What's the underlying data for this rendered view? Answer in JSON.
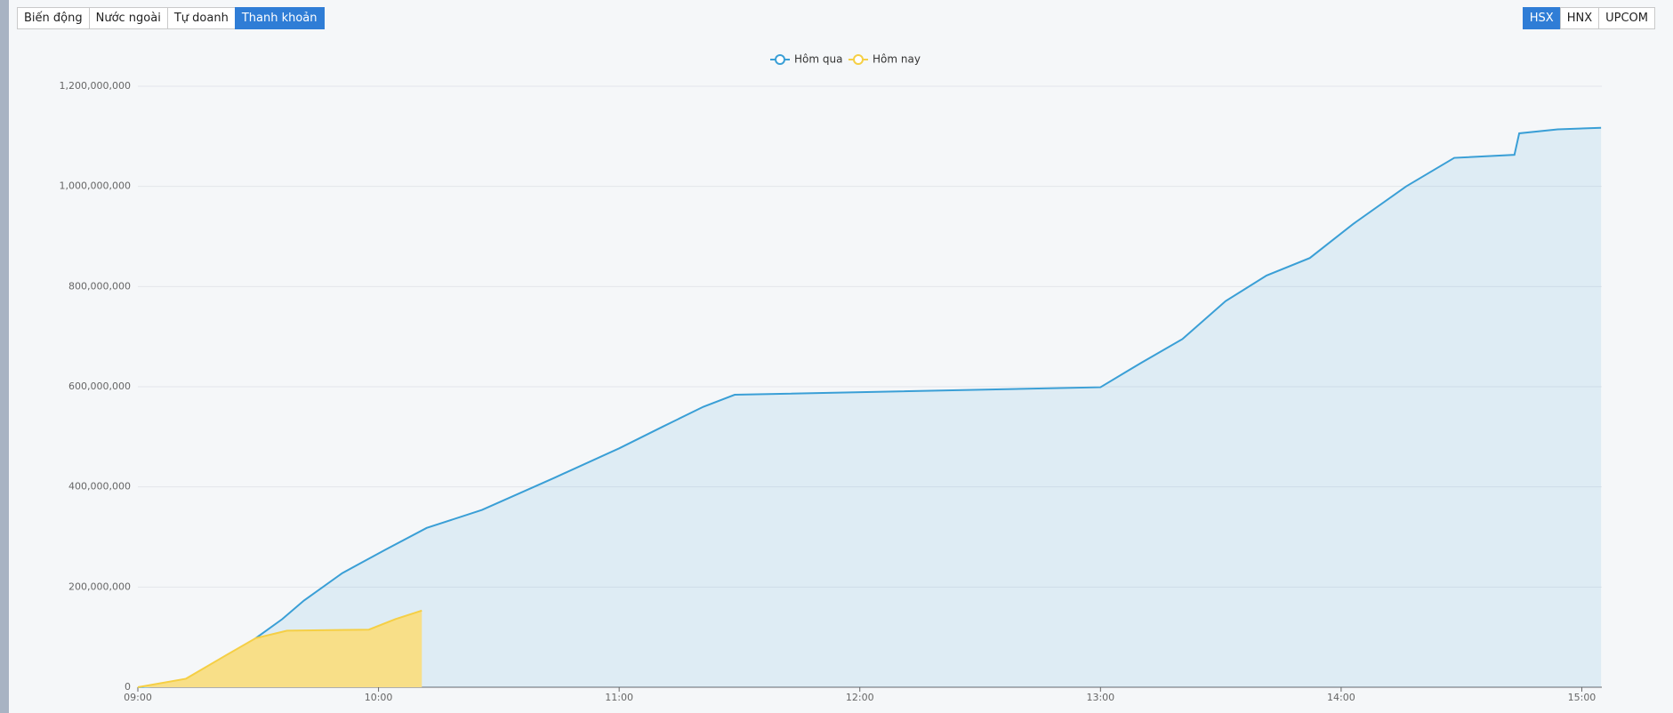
{
  "tabs": [
    "Biến động",
    "Nước ngoài",
    "Tự doanh",
    "Thanh khoản"
  ],
  "active_tab": 3,
  "exchanges": [
    "HSX",
    "HNX",
    "UPCOM"
  ],
  "active_exchange": 0,
  "chart_data": {
    "type": "area",
    "xlim": [
      9,
      15.0833
    ],
    "xticks": [
      {
        "value": 9,
        "label": "09:00"
      },
      {
        "value": 10,
        "label": "10:00"
      },
      {
        "value": 11,
        "label": "11:00"
      },
      {
        "value": 12,
        "label": "12:00"
      },
      {
        "value": 13,
        "label": "13:00"
      },
      {
        "value": 14,
        "label": "14:00"
      },
      {
        "value": 15,
        "label": "15:00"
      }
    ],
    "ylim": [
      0,
      1200000000
    ],
    "yticks": [
      {
        "value": 0,
        "label": "0"
      },
      {
        "value": 200000000,
        "label": "200,000,000"
      },
      {
        "value": 400000000,
        "label": "400,000,000"
      },
      {
        "value": 600000000,
        "label": "600,000,000"
      },
      {
        "value": 800000000,
        "label": "800,000,000"
      },
      {
        "value": 1000000000,
        "label": "1,000,000,000"
      },
      {
        "value": 1200000000,
        "label": "1,200,000,000"
      }
    ],
    "grid": true,
    "series": [
      {
        "name": "Hôm qua",
        "color": "#3a9fd6",
        "fill": "rgba(58,159,214,0.12)",
        "x": [
          9,
          9.2,
          9.36,
          9.49,
          9.6,
          9.69,
          9.85,
          10.03,
          10.2,
          10.43,
          10.73,
          11,
          11.18,
          11.35,
          11.48,
          13,
          13.17,
          13.34,
          13.52,
          13.69,
          13.87,
          14.05,
          14.27,
          14.47,
          14.72,
          14.74,
          14.9,
          15.08
        ],
        "values": [
          0,
          6000000,
          51000000,
          98000000,
          136000000,
          173000000,
          228000000,
          275000000,
          318000000,
          354000000,
          418000000,
          477000000,
          520000000,
          560000000,
          584000000,
          599000000,
          648000000,
          695000000,
          771000000,
          822000000,
          857000000,
          925000000,
          1000000000,
          1057000000,
          1063000000,
          1106000000,
          1114000000,
          1117000000
        ]
      },
      {
        "name": "Hôm nay",
        "color": "#f5cf45",
        "fill": "#f8df88",
        "x": [
          9,
          9.2,
          9.36,
          9.49,
          9.62,
          9.96,
          10.07,
          10.18
        ],
        "values": [
          0,
          17000000,
          62000000,
          98000000,
          113000000,
          115000000,
          136000000,
          153000000
        ]
      }
    ]
  }
}
